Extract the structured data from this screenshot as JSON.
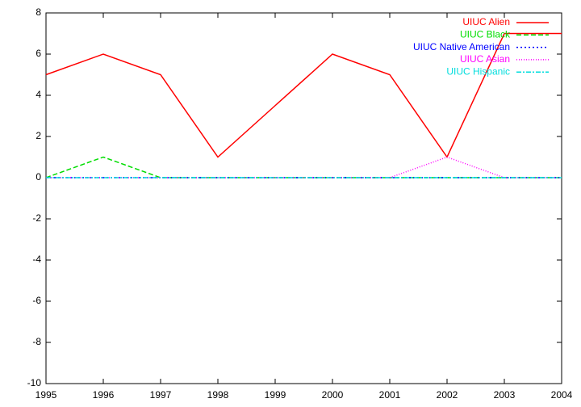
{
  "chart_data": {
    "type": "line",
    "x": [
      1995,
      1996,
      1997,
      1998,
      1999,
      2000,
      2001,
      2002,
      2003,
      2004
    ],
    "series": [
      {
        "name": "UIUC Alien",
        "color": "#ff0000",
        "dash": "none",
        "values": [
          5,
          6,
          5,
          1,
          3.5,
          6,
          5,
          1,
          7,
          7
        ]
      },
      {
        "name": "UIUC Black",
        "color": "#00dd00",
        "dash": "6,3",
        "values": [
          0,
          1,
          0,
          0,
          0,
          0,
          0,
          0,
          0,
          0
        ]
      },
      {
        "name": "UIUC Native American",
        "color": "#0000ff",
        "dash": "2,3",
        "values": [
          0,
          0,
          0,
          0,
          0,
          0,
          0,
          0,
          0,
          0
        ]
      },
      {
        "name": "UIUC Asian",
        "color": "#ff00ff",
        "dash": "1,2",
        "values": [
          0,
          0,
          0,
          0,
          0,
          0,
          0,
          1,
          0,
          0
        ]
      },
      {
        "name": "UIUC Hispanic",
        "color": "#00dddd",
        "dash": "6,2,2,2",
        "values": [
          0,
          0,
          0,
          0,
          0,
          0,
          0,
          0,
          0,
          0
        ]
      }
    ],
    "xlim": [
      1995,
      2004
    ],
    "xticks": [
      1995,
      1996,
      1997,
      1998,
      1999,
      2000,
      2001,
      2002,
      2003,
      2004
    ],
    "ylim": [
      -10,
      8
    ],
    "yticks": [
      -10,
      -8,
      -6,
      -4,
      -2,
      0,
      2,
      4,
      6,
      8
    ],
    "legend": "top-right"
  }
}
